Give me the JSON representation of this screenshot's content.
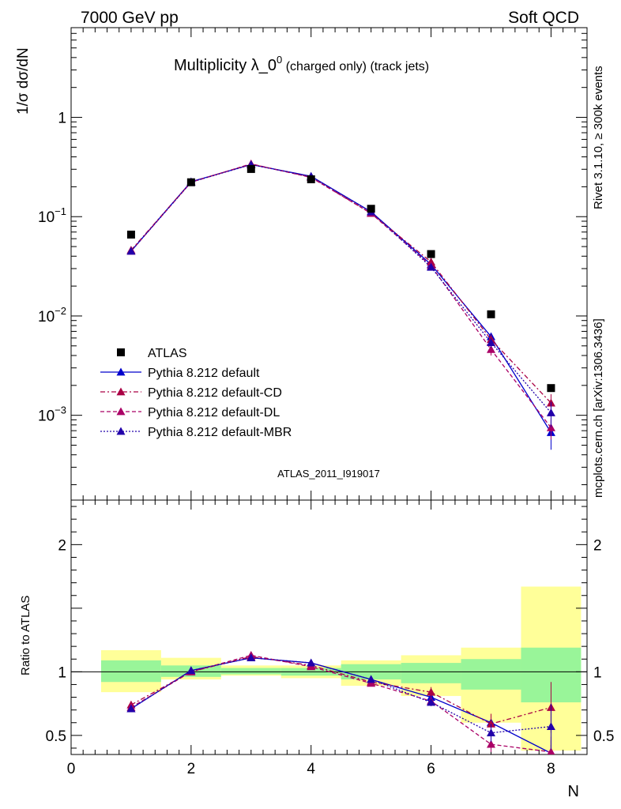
{
  "header": {
    "left": "7000 GeV pp",
    "right": "Soft QCD"
  },
  "side_labels": {
    "rivet": "Rivet 3.1.10, ≥ 300k events",
    "mcplots": "mcplots.cern.ch [arXiv:1306.3436]"
  },
  "analysis_label": "ATLAS_2011_I919017",
  "colors": {
    "data": "#000000",
    "default": "#0000cc",
    "cd": "#aa0044",
    "dl": "#aa0066",
    "mbr": "#2200aa",
    "band_inner": "#99f599",
    "band_outer": "#ffff99"
  },
  "chart_data": [
    {
      "type": "line",
      "panel": "main",
      "title_main": "Multiplicity λ_0",
      "title_sup": "0",
      "title_suffix": " (charged only) (track jets)",
      "ylabel": "1/σ dσ/dN",
      "yscale": "log",
      "ylim": [
        0.00014,
        8
      ],
      "xlim": [
        0,
        8.6
      ],
      "y_ticks": [
        {
          "value": 1,
          "label": "1"
        },
        {
          "value": 0.1,
          "label": "10",
          "exp": "−1"
        },
        {
          "value": 0.01,
          "label": "10",
          "exp": "−2"
        },
        {
          "value": 0.001,
          "label": "10",
          "exp": "−3"
        }
      ],
      "legend": [
        {
          "key": "data",
          "label": "ATLAS"
        },
        {
          "key": "default",
          "label": "Pythia 8.212 default"
        },
        {
          "key": "cd",
          "label": "Pythia 8.212 default-CD"
        },
        {
          "key": "dl",
          "label": "Pythia 8.212 default-DL"
        },
        {
          "key": "mbr",
          "label": "Pythia 8.212 default-MBR"
        }
      ],
      "x": [
        1,
        2,
        3,
        4,
        5,
        6,
        7,
        8
      ],
      "data": {
        "name": "ATLAS",
        "values": [
          0.066,
          0.222,
          0.302,
          0.238,
          0.12,
          0.042,
          0.0104,
          0.00188
        ]
      },
      "series": [
        {
          "name": "Pythia 8.212 default",
          "key": "default",
          "dash": "",
          "values": [
            0.045,
            0.225,
            0.335,
            0.255,
            0.112,
            0.033,
            0.0062,
            0.00067
          ],
          "err": [
            0,
            0,
            0,
            0,
            0,
            0,
            0.0005,
            0.00022
          ]
        },
        {
          "name": "Pythia 8.212 default-CD",
          "key": "cd",
          "dash": "6,3,2,3",
          "values": [
            0.046,
            0.223,
            0.338,
            0.25,
            0.108,
            0.035,
            0.0058,
            0.00133
          ],
          "err": [
            0,
            0,
            0,
            0,
            0,
            0.002,
            0.0007,
            0.0003
          ]
        },
        {
          "name": "Pythia 8.212 default-DL",
          "key": "dl",
          "dash": "5,3",
          "values": [
            0.045,
            0.222,
            0.34,
            0.248,
            0.108,
            0.032,
            0.0046,
            0.00075
          ],
          "err": [
            0,
            0,
            0,
            0,
            0,
            0.002,
            0.0006,
            0.00018
          ]
        },
        {
          "name": "Pythia 8.212 default-MBR",
          "key": "mbr",
          "dash": "2,2",
          "values": [
            0.045,
            0.223,
            0.334,
            0.254,
            0.112,
            0.031,
            0.0054,
            0.00106
          ],
          "err": [
            0,
            0,
            0,
            0,
            0,
            0.002,
            0.0006,
            0.0003
          ]
        }
      ]
    },
    {
      "type": "line",
      "panel": "ratio",
      "ylabel": "Ratio to ATLAS",
      "xlabel": "N",
      "ylim": [
        0.35,
        2.35
      ],
      "xlim": [
        0,
        8.6
      ],
      "x_ticks": [
        0,
        2,
        4,
        6,
        8
      ],
      "y_ticks": [
        0.5,
        1,
        2
      ],
      "bands": [
        {
          "x0": 0.5,
          "x1": 1.5,
          "inner": [
            0.92,
            1.09
          ],
          "outer": [
            0.84,
            1.17
          ]
        },
        {
          "x0": 1.5,
          "x1": 2.5,
          "inner": [
            0.96,
            1.05
          ],
          "outer": [
            0.94,
            1.11
          ]
        },
        {
          "x0": 2.5,
          "x1": 3.5,
          "inner": [
            0.98,
            1.03
          ],
          "outer": [
            0.97,
            1.05
          ]
        },
        {
          "x0": 3.5,
          "x1": 4.5,
          "inner": [
            0.97,
            1.03
          ],
          "outer": [
            0.95,
            1.05
          ]
        },
        {
          "x0": 4.5,
          "x1": 5.5,
          "inner": [
            0.94,
            1.06
          ],
          "outer": [
            0.89,
            1.09
          ]
        },
        {
          "x0": 5.5,
          "x1": 6.5,
          "inner": [
            0.91,
            1.07
          ],
          "outer": [
            0.81,
            1.13
          ]
        },
        {
          "x0": 6.5,
          "x1": 7.5,
          "inner": [
            0.86,
            1.1
          ],
          "outer": [
            0.6,
            1.19
          ]
        },
        {
          "x0": 7.5,
          "x1": 8.5,
          "inner": [
            0.76,
            1.19
          ],
          "outer": [
            0.38,
            1.67
          ]
        }
      ],
      "x": [
        1,
        2,
        3,
        4,
        5,
        6,
        7,
        8
      ],
      "series": [
        {
          "name": "Pythia 8.212 default",
          "key": "default",
          "dash": "",
          "values": [
            0.71,
            1.01,
            1.11,
            1.07,
            0.94,
            0.8,
            0.6,
            0.36
          ],
          "err": [
            0.02,
            0.01,
            0.01,
            0.01,
            0.01,
            0.02,
            0.05,
            0.1
          ]
        },
        {
          "name": "Pythia 8.212 default-CD",
          "key": "cd",
          "dash": "6,3,2,3",
          "values": [
            0.74,
            1.0,
            1.12,
            1.05,
            0.92,
            0.84,
            0.59,
            0.72
          ],
          "err": [
            0.03,
            0.01,
            0.01,
            0.01,
            0.01,
            0.04,
            0.08,
            0.2
          ]
        },
        {
          "name": "Pythia 8.212 default-DL",
          "key": "dl",
          "dash": "5,3",
          "values": [
            0.72,
            1.0,
            1.13,
            1.04,
            0.91,
            0.77,
            0.43,
            0.37
          ],
          "err": [
            0.02,
            0.01,
            0.01,
            0.01,
            0.01,
            0.03,
            0.06,
            0.12
          ]
        },
        {
          "name": "Pythia 8.212 default-MBR",
          "key": "mbr",
          "dash": "2,2",
          "values": [
            0.71,
            1.01,
            1.11,
            1.07,
            0.94,
            0.76,
            0.52,
            0.57
          ],
          "err": [
            0.02,
            0.01,
            0.01,
            0.01,
            0.01,
            0.03,
            0.07,
            0.18
          ]
        }
      ]
    }
  ]
}
